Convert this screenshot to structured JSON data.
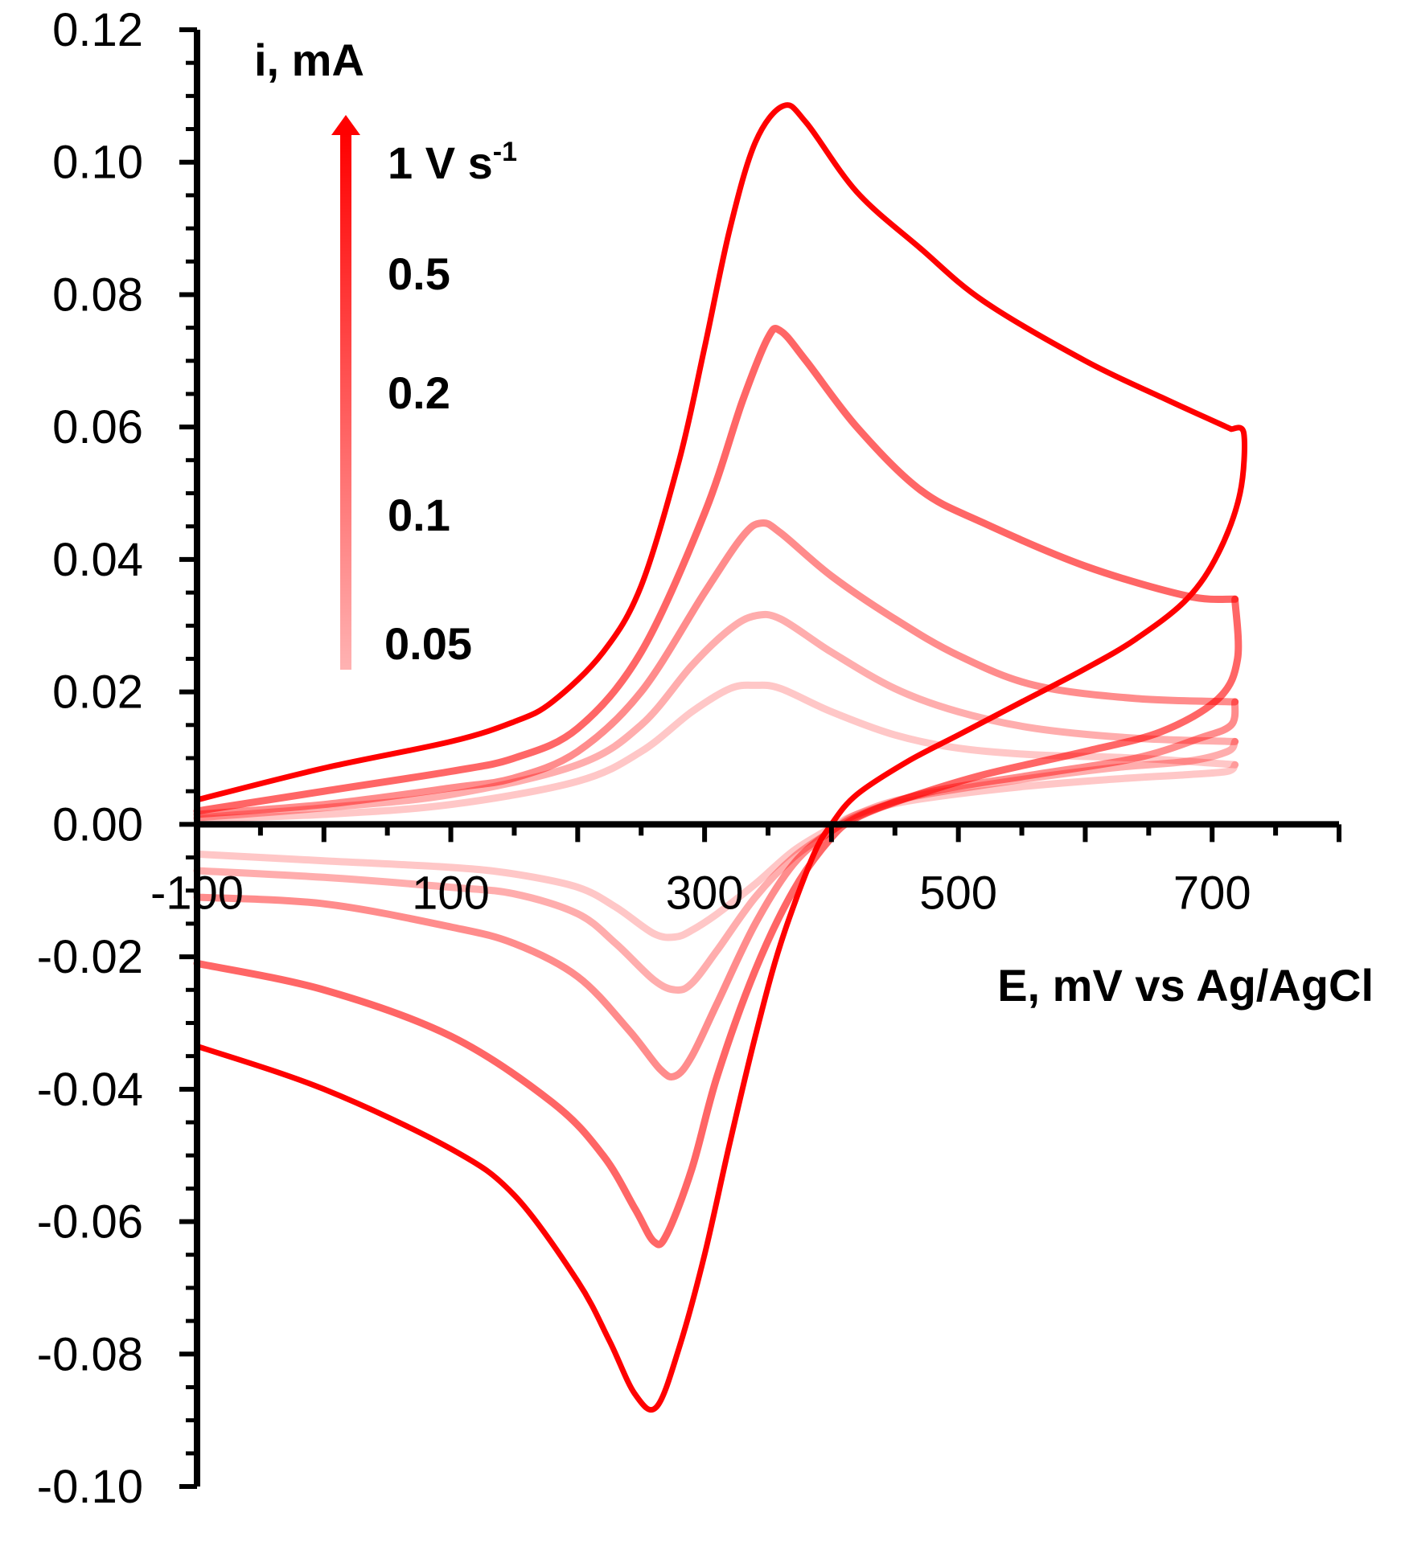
{
  "chart_data": {
    "type": "line",
    "title": "",
    "xlabel": "E, mV vs Ag/AgCl",
    "ylabel": "i, mA",
    "xlim": [
      -100,
      800
    ],
    "ylim": [
      -0.1,
      0.12
    ],
    "x_ticks": [
      -100,
      100,
      300,
      500,
      700
    ],
    "x_tick_labels": [
      "-100",
      "100",
      "300",
      "500",
      "700"
    ],
    "y_ticks": [
      -0.1,
      -0.08,
      -0.06,
      -0.04,
      -0.02,
      0.0,
      0.02,
      0.04,
      0.06,
      0.08,
      0.1,
      0.12
    ],
    "y_tick_labels": [
      "-0.10",
      "-0.08",
      "-0.06",
      "-0.04",
      "-0.02",
      "0.00",
      "0.02",
      "0.04",
      "0.06",
      "0.08",
      "0.10",
      "0.12"
    ],
    "grid": false,
    "legend_arrow_top_label": "1 V s",
    "legend_arrow_superscript": "-1",
    "series": [
      {
        "name": "1 V s-1",
        "label": "1 V s",
        "color": "#ff0000",
        "opacity": 1.0,
        "forward": [
          [
            -100,
            0.0037
          ],
          [
            0,
            0.0085
          ],
          [
            100,
            0.0125
          ],
          [
            150,
            0.0155
          ],
          [
            180,
            0.0185
          ],
          [
            220,
            0.026
          ],
          [
            250,
            0.036
          ],
          [
            280,
            0.055
          ],
          [
            300,
            0.072
          ],
          [
            320,
            0.09
          ],
          [
            340,
            0.103
          ],
          [
            362,
            0.1085
          ],
          [
            380,
            0.106
          ],
          [
            420,
            0.0955
          ],
          [
            470,
            0.087
          ],
          [
            520,
            0.079
          ],
          [
            600,
            0.07
          ],
          [
            660,
            0.0645
          ],
          [
            700,
            0.061
          ],
          [
            715,
            0.0597
          ]
        ],
        "reverse": [
          [
            715,
            0.0597
          ],
          [
            725,
            0.059
          ],
          [
            722,
            0.05
          ],
          [
            705,
            0.041
          ],
          [
            680,
            0.034
          ],
          [
            640,
            0.028
          ],
          [
            600,
            0.0235
          ],
          [
            550,
            0.0185
          ],
          [
            500,
            0.0135
          ],
          [
            460,
            0.0095
          ],
          [
            420,
            0.0045
          ],
          [
            400,
            0.0
          ],
          [
            385,
            -0.005
          ],
          [
            360,
            -0.018
          ],
          [
            340,
            -0.032
          ],
          [
            320,
            -0.048
          ],
          [
            300,
            -0.065
          ],
          [
            280,
            -0.079
          ],
          [
            262,
            -0.088
          ],
          [
            245,
            -0.086
          ],
          [
            225,
            -0.078
          ],
          [
            200,
            -0.069
          ],
          [
            150,
            -0.056
          ],
          [
            100,
            -0.049
          ],
          [
            0,
            -0.04
          ],
          [
            -100,
            -0.0335
          ]
        ]
      },
      {
        "name": "0.5",
        "label": "0.5",
        "color": "#ff0000",
        "opacity": 0.6,
        "forward": [
          [
            -100,
            0.002
          ],
          [
            0,
            0.005
          ],
          [
            100,
            0.008
          ],
          [
            150,
            0.01
          ],
          [
            200,
            0.0145
          ],
          [
            250,
            0.026
          ],
          [
            300,
            0.047
          ],
          [
            330,
            0.064
          ],
          [
            350,
            0.0735
          ],
          [
            360,
            0.0745
          ],
          [
            380,
            0.07
          ],
          [
            420,
            0.06
          ],
          [
            470,
            0.0505
          ],
          [
            520,
            0.0455
          ],
          [
            600,
            0.039
          ],
          [
            680,
            0.0345
          ],
          [
            718,
            0.034
          ]
        ],
        "reverse": [
          [
            718,
            0.034
          ],
          [
            720,
            0.025
          ],
          [
            705,
            0.019
          ],
          [
            660,
            0.014
          ],
          [
            600,
            0.011
          ],
          [
            520,
            0.0075
          ],
          [
            460,
            0.004
          ],
          [
            420,
            0.001
          ],
          [
            400,
            -0.002
          ],
          [
            370,
            -0.01
          ],
          [
            340,
            -0.022
          ],
          [
            310,
            -0.038
          ],
          [
            290,
            -0.052
          ],
          [
            270,
            -0.062
          ],
          [
            260,
            -0.063
          ],
          [
            245,
            -0.058
          ],
          [
            220,
            -0.05
          ],
          [
            180,
            -0.042
          ],
          [
            100,
            -0.032
          ],
          [
            0,
            -0.025
          ],
          [
            -100,
            -0.021
          ]
        ]
      },
      {
        "name": "0.2",
        "label": "0.2",
        "color": "#ff0000",
        "opacity": 0.45,
        "forward": [
          [
            -100,
            0.0015
          ],
          [
            0,
            0.003
          ],
          [
            100,
            0.0055
          ],
          [
            150,
            0.007
          ],
          [
            200,
            0.011
          ],
          [
            250,
            0.02
          ],
          [
            300,
            0.035
          ],
          [
            330,
            0.0435
          ],
          [
            345,
            0.0455
          ],
          [
            360,
            0.044
          ],
          [
            400,
            0.0375
          ],
          [
            450,
            0.031
          ],
          [
            500,
            0.0255
          ],
          [
            560,
            0.021
          ],
          [
            640,
            0.019
          ],
          [
            718,
            0.0185
          ]
        ],
        "reverse": [
          [
            718,
            0.0185
          ],
          [
            715,
            0.015
          ],
          [
            690,
            0.013
          ],
          [
            640,
            0.01
          ],
          [
            560,
            0.0075
          ],
          [
            480,
            0.005
          ],
          [
            430,
            0.002
          ],
          [
            400,
            -0.001
          ],
          [
            370,
            -0.006
          ],
          [
            340,
            -0.015
          ],
          [
            310,
            -0.027
          ],
          [
            290,
            -0.035
          ],
          [
            277,
            -0.038
          ],
          [
            265,
            -0.037
          ],
          [
            240,
            -0.031
          ],
          [
            200,
            -0.023
          ],
          [
            150,
            -0.018
          ],
          [
            100,
            -0.0155
          ],
          [
            0,
            -0.012
          ],
          [
            -100,
            -0.011
          ]
        ]
      },
      {
        "name": "0.1",
        "label": "0.1",
        "color": "#ff0000",
        "opacity": 0.32,
        "forward": [
          [
            -100,
            0.001
          ],
          [
            0,
            0.0025
          ],
          [
            100,
            0.0045
          ],
          [
            200,
            0.009
          ],
          [
            250,
            0.015
          ],
          [
            290,
            0.024
          ],
          [
            320,
            0.0295
          ],
          [
            340,
            0.0315
          ],
          [
            360,
            0.031
          ],
          [
            400,
            0.026
          ],
          [
            450,
            0.0205
          ],
          [
            500,
            0.017
          ],
          [
            560,
            0.0145
          ],
          [
            640,
            0.013
          ],
          [
            718,
            0.0125
          ]
        ],
        "reverse": [
          [
            718,
            0.0125
          ],
          [
            712,
            0.011
          ],
          [
            680,
            0.0095
          ],
          [
            620,
            0.0085
          ],
          [
            540,
            0.0065
          ],
          [
            460,
            0.004
          ],
          [
            420,
            0.0015
          ],
          [
            400,
            -0.001
          ],
          [
            370,
            -0.005
          ],
          [
            340,
            -0.011
          ],
          [
            310,
            -0.019
          ],
          [
            290,
            -0.024
          ],
          [
            277,
            -0.025
          ],
          [
            260,
            -0.0235
          ],
          [
            230,
            -0.018
          ],
          [
            200,
            -0.0135
          ],
          [
            150,
            -0.0105
          ],
          [
            100,
            -0.0095
          ],
          [
            0,
            -0.008
          ],
          [
            -100,
            -0.007
          ]
        ]
      },
      {
        "name": "0.05",
        "label": "0.05",
        "color": "#ff0000",
        "opacity": 0.22,
        "forward": [
          [
            -100,
            0.0008
          ],
          [
            0,
            0.0015
          ],
          [
            100,
            0.003
          ],
          [
            200,
            0.0065
          ],
          [
            250,
            0.011
          ],
          [
            290,
            0.017
          ],
          [
            320,
            0.0205
          ],
          [
            340,
            0.021
          ],
          [
            360,
            0.0205
          ],
          [
            400,
            0.017
          ],
          [
            450,
            0.0135
          ],
          [
            500,
            0.0115
          ],
          [
            560,
            0.0105
          ],
          [
            640,
            0.01
          ],
          [
            718,
            0.009
          ]
        ],
        "reverse": [
          [
            718,
            0.009
          ],
          [
            712,
            0.008
          ],
          [
            680,
            0.0075
          ],
          [
            620,
            0.0068
          ],
          [
            540,
            0.0055
          ],
          [
            460,
            0.0035
          ],
          [
            420,
            0.0015
          ],
          [
            400,
            -0.0005
          ],
          [
            370,
            -0.004
          ],
          [
            340,
            -0.009
          ],
          [
            310,
            -0.0135
          ],
          [
            290,
            -0.016
          ],
          [
            277,
            -0.017
          ],
          [
            260,
            -0.0165
          ],
          [
            230,
            -0.0125
          ],
          [
            200,
            -0.0095
          ],
          [
            150,
            -0.0075
          ],
          [
            100,
            -0.0065
          ],
          [
            0,
            -0.0055
          ],
          [
            -100,
            -0.0045
          ]
        ]
      }
    ]
  }
}
